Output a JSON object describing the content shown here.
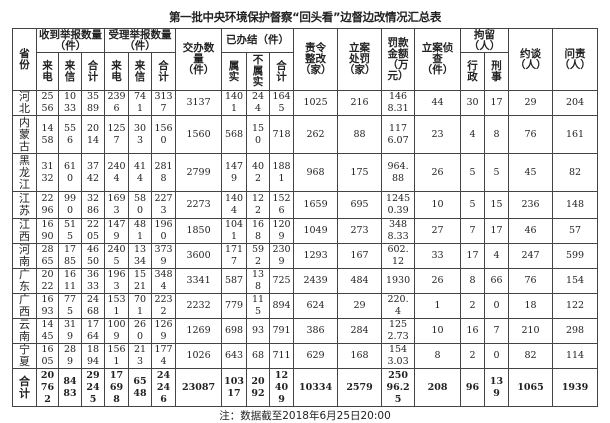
{
  "title": "第一批中央环境保护督察“回头看”边督边改情况汇总表",
  "headers": {
    "province": "省份",
    "received": "收到举报数量（件）",
    "accepted": "受理举报数量（件）",
    "phone": "来电",
    "letter": "来信",
    "total": "合计",
    "assigned": "交办数量（件）",
    "concluded": "已办结（件）",
    "true": "属实",
    "not_true": "不属实",
    "rectify": "责令整改（家）",
    "penalty": "立案处罚（家）",
    "fine": "罚款金额（万元）",
    "investigate": "立案侦查（件）",
    "detain": "拘留（人）",
    "admin": "行政",
    "criminal": "刑事",
    "interview": "约谈（人）",
    "accountability": "问责（人）"
  },
  "rows": [
    {
      "province": "河北",
      "values": [
        "2556",
        "1033",
        "3589",
        "2396",
        "741",
        "3137",
        "3137",
        "1401",
        "244",
        "1645",
        "1025",
        "216",
        "1468.31",
        "44",
        "30",
        "17",
        "29",
        "204"
      ]
    },
    {
      "province": "内蒙古",
      "values": [
        "1458",
        "556",
        "2014",
        "1257",
        "303",
        "1560",
        "1560",
        "568",
        "150",
        "718",
        "262",
        "88",
        "1176.07",
        "23",
        "4",
        "8",
        "76",
        "161"
      ]
    },
    {
      "province": "黑龙江",
      "values": [
        "3132",
        "610",
        "3742",
        "2404",
        "414",
        "2818",
        "2799",
        "1479",
        "402",
        "1881",
        "968",
        "175",
        "964.88",
        "26",
        "5",
        "5",
        "45",
        "82"
      ]
    },
    {
      "province": "江苏",
      "values": [
        "2296",
        "990",
        "3286",
        "1693",
        "580",
        "2273",
        "2273",
        "1404",
        "122",
        "1526",
        "1659",
        "695",
        "12450.39",
        "10",
        "5",
        "15",
        "236",
        "148"
      ]
    },
    {
      "province": "江西",
      "values": [
        "1690",
        "515",
        "2205",
        "1479",
        "481",
        "1960",
        "1850",
        "1041",
        "168",
        "1209",
        "1049",
        "273",
        "3488.33",
        "27",
        "7",
        "17",
        "46",
        "57"
      ]
    },
    {
      "province": "河南",
      "values": [
        "2865",
        "1785",
        "4650",
        "2405",
        "1334",
        "3739",
        "3600",
        "1717",
        "592",
        "2309",
        "1293",
        "167",
        "602.12",
        "33",
        "17",
        "4",
        "247",
        "599"
      ]
    },
    {
      "province": "广东",
      "values": [
        "2022",
        "1611",
        "3633",
        "1963",
        "1521",
        "3484",
        "3341",
        "587",
        "138",
        "725",
        "2439",
        "484",
        "1930",
        "26",
        "8",
        "66",
        "76",
        "154"
      ]
    },
    {
      "province": "广西",
      "values": [
        "1693",
        "775",
        "2468",
        "1531",
        "701",
        "2232",
        "2232",
        "779",
        "115",
        "894",
        "624",
        "29",
        "220.4",
        "1",
        "2",
        "0",
        "18",
        "122"
      ]
    },
    {
      "province": "云南",
      "values": [
        "1445",
        "319",
        "1764",
        "1009",
        "260",
        "1269",
        "1269",
        "698",
        "93",
        "791",
        "386",
        "284",
        "1252.73",
        "10",
        "16",
        "7",
        "210",
        "298"
      ]
    },
    {
      "province": "宁夏",
      "values": [
        "1605",
        "289",
        "1894",
        "1561",
        "213",
        "1774",
        "1026",
        "643",
        "68",
        "711",
        "629",
        "168",
        "1543.03",
        "8",
        "2",
        "0",
        "82",
        "114"
      ]
    }
  ],
  "total": {
    "province": "合计",
    "values": [
      "20762",
      "8483",
      "29245",
      "17698",
      "6548",
      "24246",
      "23087",
      "10317",
      "2092",
      "12409",
      "10334",
      "2579",
      "25096.25",
      "208",
      "96",
      "139",
      "1065",
      "1939"
    ]
  },
  "note": "注：数据截至2018年6月25日20:00"
}
